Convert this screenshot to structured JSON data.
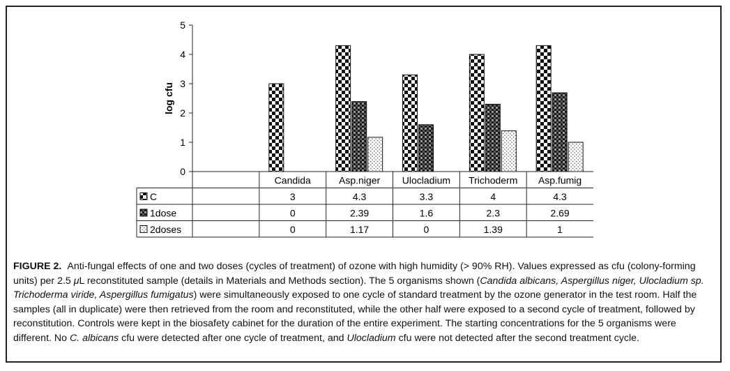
{
  "chart_data": {
    "type": "bar",
    "ylabel": "log cfu",
    "ylim": [
      0,
      5
    ],
    "yticks": [
      0,
      1,
      2,
      3,
      4,
      5
    ],
    "categories": [
      "Candida",
      "Asp.niger",
      "Ulocladium",
      "Trichoderm",
      "Asp.fumig"
    ],
    "series": [
      {
        "name": "C",
        "values": [
          3,
          4.3,
          3.3,
          4,
          4.3
        ],
        "pattern": "checker-large"
      },
      {
        "name": "1dose",
        "values": [
          0,
          2.39,
          1.6,
          2.3,
          2.69
        ],
        "pattern": "checker-dark"
      },
      {
        "name": "2doses",
        "values": [
          0,
          1.17,
          0,
          1.39,
          1
        ],
        "pattern": "dots-light"
      }
    ],
    "data_table": true,
    "grid": false
  },
  "caption": {
    "label": "FIGURE 2.",
    "parts": [
      {
        "t": "Anti-fungal effects of one and two doses (cycles of treatment) of ozone with high humidity (> 90% RH). Values expressed as cfu (colony-forming units) per 2.5 "
      },
      {
        "t": "μ",
        "i": true
      },
      {
        "t": "L reconstituted sample (details in Materials and Methods section). The 5 organisms shown ("
      },
      {
        "t": "Candida albicans, Aspergillus niger, Ulocladium sp. Trichoderma viride, Aspergillus fumigatus",
        "i": true
      },
      {
        "t": ") were simultaneously exposed to one cycle of standard treatment by the ozone generator in the test room. Half the samples (all in duplicate) were then retrieved from the room and reconstituted, while the other half were exposed to a second cycle of treatment, followed by reconstitution. Controls were kept in the biosafety cabinet for the duration of the entire experiment. The starting concentrations for the 5 organisms were different. No "
      },
      {
        "t": "C. albicans",
        "i": true
      },
      {
        "t": " cfu were detected after one cycle of treatment, and "
      },
      {
        "t": "Ulocladium",
        "i": true
      },
      {
        "t": " cfu were not detected after the second treatment cycle."
      }
    ]
  }
}
